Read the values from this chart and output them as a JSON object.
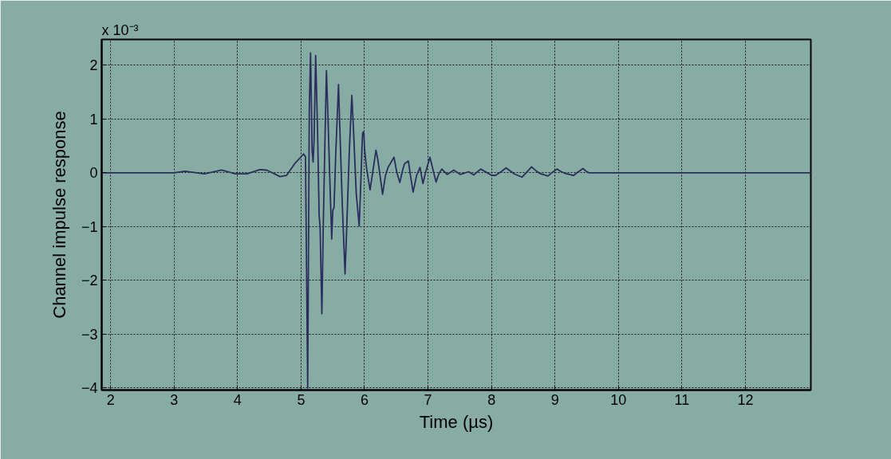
{
  "chart_data": {
    "type": "line",
    "xlabel": "Time (µs)",
    "ylabel": "Channel impulse response",
    "annotations": [
      "x 10⁻³"
    ],
    "x": [
      1.86,
      3.0,
      3.17,
      3.48,
      3.75,
      3.85,
      3.96,
      4.15,
      4.35,
      4.46,
      4.67,
      4.77,
      4.9,
      5.04,
      5.07,
      5.105,
      5.13,
      5.15,
      5.175,
      5.19,
      5.205,
      5.23,
      5.26,
      5.285,
      5.3,
      5.328,
      5.35,
      5.375,
      5.4,
      5.425,
      5.45,
      5.483,
      5.5,
      5.52,
      5.545,
      5.59,
      5.62,
      5.65,
      5.693,
      5.72,
      5.76,
      5.8,
      5.83,
      5.87,
      5.916,
      5.95,
      5.96,
      5.97,
      5.98,
      5.99,
      6.0,
      6.03,
      6.087,
      6.14,
      6.18,
      6.21,
      6.25,
      6.284,
      6.33,
      6.37,
      6.464,
      6.51,
      6.556,
      6.6,
      6.63,
      6.69,
      6.73,
      6.765,
      6.82,
      6.874,
      6.92,
      6.96,
      7.03,
      7.08,
      7.126,
      7.17,
      7.217,
      7.3,
      7.406,
      7.51,
      7.64,
      7.72,
      7.83,
      7.99,
      8.06,
      8.15,
      8.23,
      8.3,
      8.36,
      8.48,
      8.56,
      8.63,
      8.7,
      8.76,
      8.89,
      8.96,
      9.03,
      9.1,
      9.16,
      9.29,
      9.37,
      9.44,
      9.49,
      9.53,
      13.03
    ],
    "series": [
      {
        "color": "#2b2e5c",
        "values": [
          0,
          0,
          0.03,
          -0.02,
          0.05,
          0.02,
          -0.02,
          -0.02,
          0.06,
          0.05,
          -0.07,
          -0.05,
          0.17,
          0.35,
          0.3,
          -4.0,
          1.2,
          2.23,
          0.4,
          0.2,
          0.6,
          2.18,
          0.8,
          -0.8,
          -1.0,
          -2.62,
          -1.0,
          0.5,
          1.9,
          1.0,
          0.0,
          -1.23,
          -0.7,
          -0.64,
          0.3,
          1.64,
          0.5,
          -0.6,
          -1.88,
          -1.0,
          0.4,
          1.44,
          0.7,
          -0.4,
          -0.99,
          0.1,
          0.49,
          0.74,
          0.76,
          0.73,
          0.45,
          0.1,
          -0.32,
          0.1,
          0.42,
          0.24,
          -0.1,
          -0.4,
          -0.05,
          0.1,
          0.29,
          0.0,
          -0.18,
          0.05,
          0.17,
          0.22,
          -0.1,
          -0.36,
          -0.05,
          0.1,
          -0.2,
          0.0,
          0.29,
          0.05,
          -0.17,
          -0.02,
          0.07,
          -0.03,
          0.05,
          -0.03,
          0.02,
          -0.04,
          0.07,
          -0.04,
          -0.05,
          0.02,
          0.09,
          0.03,
          -0.02,
          -0.08,
          0.02,
          0.11,
          0.04,
          -0.01,
          -0.06,
          0.01,
          0.07,
          0.02,
          -0.01,
          -0.05,
          0.02,
          0.08,
          0.03,
          0.0,
          0.0
        ]
      }
    ],
    "xlim": [
      1.86,
      13.03
    ],
    "ylim": [
      -4.04,
      2.48
    ],
    "xticks": [
      2,
      3,
      4,
      5,
      6,
      7,
      8,
      9,
      10,
      11,
      12
    ],
    "yticks": [
      -4,
      -3,
      -2,
      -1,
      0,
      1,
      2
    ],
    "grid": true,
    "line_style": "solid"
  }
}
